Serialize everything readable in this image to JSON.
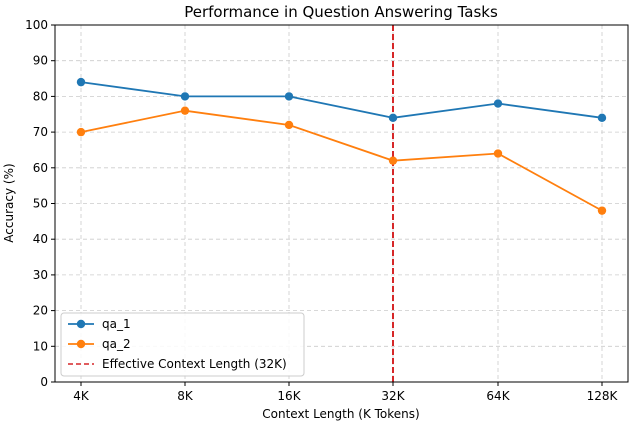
{
  "chart_data": {
    "type": "line",
    "title": "Performance in Question Answering Tasks",
    "xlabel": "Context Length (K Tokens)",
    "ylabel": "Accuracy (%)",
    "categories": [
      "4K",
      "8K",
      "16K",
      "32K",
      "64K",
      "128K"
    ],
    "ylim": [
      0,
      100
    ],
    "yticks": [
      0,
      10,
      20,
      30,
      40,
      50,
      60,
      70,
      80,
      90,
      100
    ],
    "grid": true,
    "legend_position": "lower-left",
    "series": [
      {
        "name": "qa_1",
        "values": [
          84,
          80,
          80,
          74,
          78,
          74
        ],
        "color": "#1f77b4"
      },
      {
        "name": "qa_2",
        "values": [
          70,
          76,
          72,
          62,
          64,
          48
        ],
        "color": "#ff7f0e"
      }
    ],
    "reference_line": {
      "label": "Effective Context Length (32K)",
      "category": "32K",
      "color": "#d62728",
      "style": "dashed"
    }
  }
}
